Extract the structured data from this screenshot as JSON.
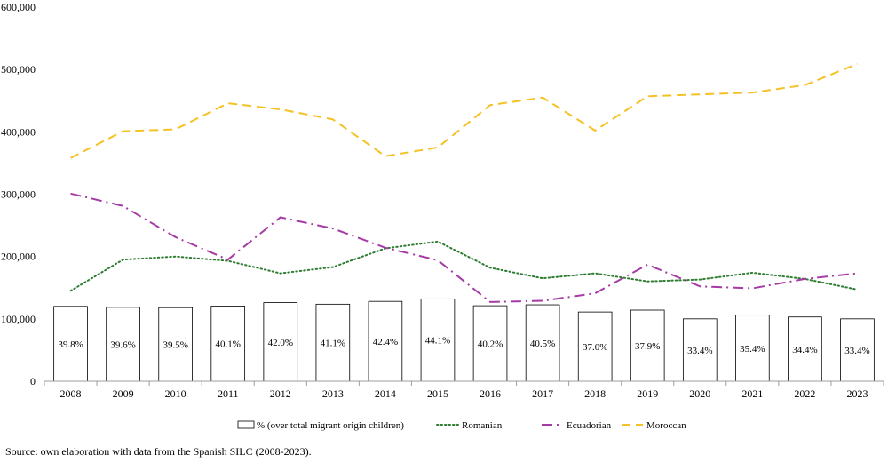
{
  "chart_data": {
    "type": "bar",
    "categories": [
      "2008",
      "2009",
      "2010",
      "2011",
      "2012",
      "2013",
      "2014",
      "2015",
      "2016",
      "2017",
      "2018",
      "2019",
      "2020",
      "2021",
      "2022",
      "2023"
    ],
    "y_axis": {
      "min": 0,
      "max": 600000,
      "ticks": [
        0,
        100000,
        200000,
        300000,
        400000,
        500000,
        600000
      ],
      "tick_labels": [
        "0",
        "100,000",
        "200,000",
        "300,000",
        "400,000",
        "500,000",
        "600,000"
      ]
    },
    "bar_series": {
      "name": "% (over total migrant origin children)",
      "values": [
        120000,
        118500,
        118000,
        120500,
        126000,
        123500,
        128000,
        132000,
        121000,
        122500,
        111000,
        114000,
        100000,
        106000,
        103000,
        100000
      ],
      "labels": [
        "39.8%",
        "39.6%",
        "39.5%",
        "40.1%",
        "42.0%",
        "41.1%",
        "42.4%",
        "44.1%",
        "40.2%",
        "40.5%",
        "37.0%",
        "37.9%",
        "33.4%",
        "35.4%",
        "34.4%",
        "33.4%"
      ],
      "fill": "#ffffff",
      "stroke": "#000000"
    },
    "line_series": [
      {
        "name": "Romanian",
        "style": "dotted",
        "color": "#2e7d32",
        "values": [
          145000,
          195000,
          200000,
          193000,
          173000,
          183000,
          213000,
          224000,
          182000,
          165000,
          173000,
          160000,
          163000,
          174000,
          164000,
          147000
        ]
      },
      {
        "name": "Ecuadorian",
        "style": "dash-dot",
        "color": "#a63aa6",
        "values": [
          301000,
          281000,
          231000,
          195000,
          263000,
          245000,
          214000,
          194000,
          127000,
          129000,
          141000,
          187000,
          152000,
          149000,
          164000,
          173000
        ]
      },
      {
        "name": "Moroccan",
        "style": "dashed",
        "color": "#f5c125",
        "values": [
          358000,
          401000,
          404000,
          446000,
          436000,
          420000,
          361000,
          375000,
          443000,
          455000,
          402000,
          457000,
          460000,
          463000,
          475000,
          509000
        ]
      }
    ],
    "legend": {
      "position": "bottom"
    },
    "grid": false
  },
  "source_note": "Source: own elaboration with data from the Spanish SILC (2008-2023)."
}
